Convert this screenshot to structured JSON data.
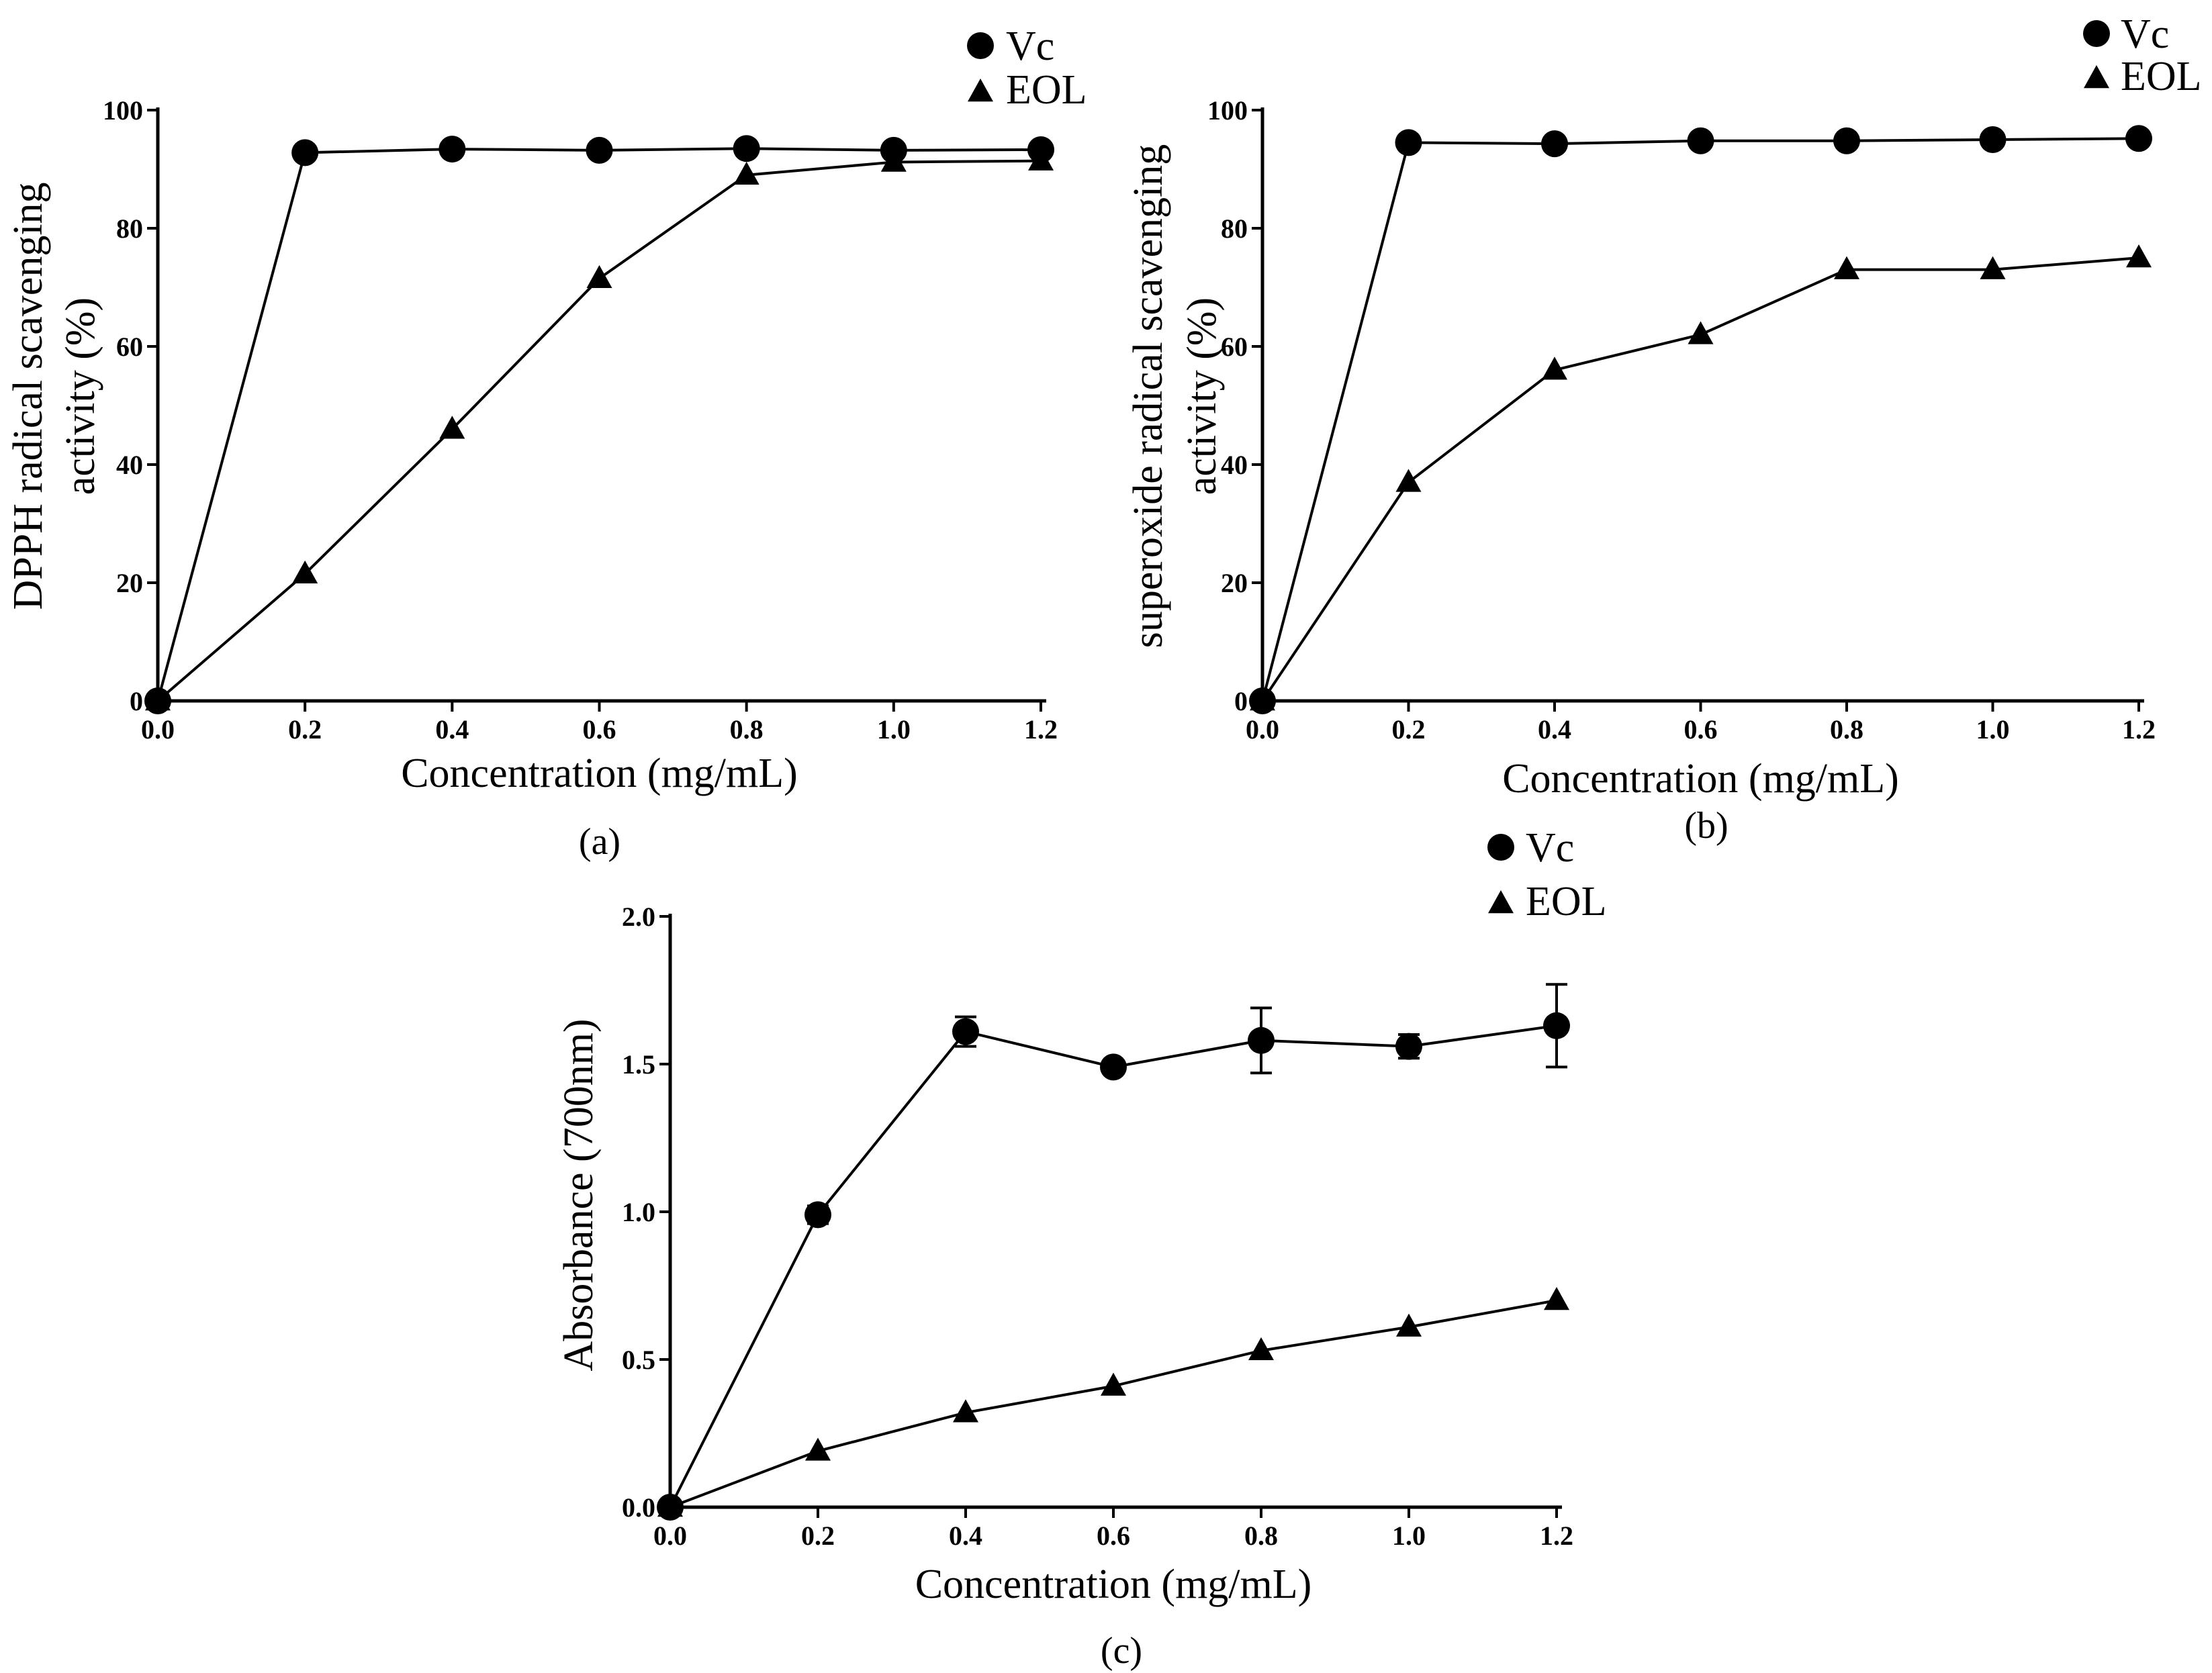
{
  "chart_data": [
    {
      "panel": "a",
      "type": "line",
      "panel_label": "(a)",
      "xlabel": "Concentration (mg/mL)",
      "ylabel_lines": [
        "DPPH radical scavenging",
        "activity (%)"
      ],
      "xlim": [
        0,
        1.2
      ],
      "ylim": [
        0,
        100
      ],
      "xticks": [
        "0.0",
        "0.2",
        "0.4",
        "0.6",
        "0.8",
        "1.0",
        "1.2"
      ],
      "yticks": [
        "0",
        "20",
        "40",
        "60",
        "80",
        "100"
      ],
      "grid": false,
      "legend_position": "top-right",
      "x": [
        0.0,
        0.2,
        0.4,
        0.6,
        0.8,
        1.0,
        1.2
      ],
      "series": [
        {
          "name": "Vc",
          "marker": "circle",
          "values": [
            0,
            92.8,
            93.4,
            93.2,
            93.5,
            93.2,
            93.3
          ]
        },
        {
          "name": "EOL",
          "marker": "triangle",
          "values": [
            0,
            21.5,
            46,
            71.5,
            89,
            91.2,
            91.4
          ]
        }
      ]
    },
    {
      "panel": "b",
      "type": "line",
      "panel_label": "(b)",
      "xlabel": "Concentration (mg/mL)",
      "ylabel_lines": [
        "superoxide radical scavenging",
        "activity (%)"
      ],
      "xlim": [
        0,
        1.2
      ],
      "ylim": [
        0,
        100
      ],
      "xticks": [
        "0.0",
        "0.2",
        "0.4",
        "0.6",
        "0.8",
        "1.0",
        "1.2"
      ],
      "yticks": [
        "0",
        "20",
        "40",
        "60",
        "80",
        "100"
      ],
      "grid": false,
      "legend_position": "top-right",
      "x": [
        0.0,
        0.2,
        0.4,
        0.6,
        0.8,
        1.0,
        1.2
      ],
      "series": [
        {
          "name": "Vc",
          "marker": "circle",
          "values": [
            0,
            94.5,
            94.3,
            94.8,
            94.8,
            95.0,
            95.2
          ]
        },
        {
          "name": "EOL",
          "marker": "triangle",
          "values": [
            0,
            37,
            56,
            62,
            73,
            73,
            75
          ]
        }
      ]
    },
    {
      "panel": "c",
      "type": "line",
      "panel_label": "(c)",
      "xlabel": "Concentration (mg/mL)",
      "ylabel_lines": [
        "Absorbance (700nm)"
      ],
      "xlim": [
        0,
        1.2
      ],
      "ylim": [
        0,
        2.0
      ],
      "xticks": [
        "0.0",
        "0.2",
        "0.4",
        "0.6",
        "0.8",
        "1.0",
        "1.2"
      ],
      "yticks": [
        "0.0",
        "0.5",
        "1.0",
        "1.5",
        "2.0"
      ],
      "grid": false,
      "legend_position": "top-right",
      "x": [
        0.0,
        0.2,
        0.4,
        0.6,
        0.8,
        1.0,
        1.2
      ],
      "series": [
        {
          "name": "Vc",
          "marker": "circle",
          "values": [
            0,
            0.99,
            1.61,
            1.49,
            1.58,
            1.56,
            1.63
          ],
          "errors": [
            0,
            0.03,
            0.05,
            0.02,
            0.11,
            0.04,
            0.14
          ]
        },
        {
          "name": "EOL",
          "marker": "triangle",
          "values": [
            0,
            0.19,
            0.32,
            0.41,
            0.53,
            0.61,
            0.7
          ]
        }
      ]
    }
  ]
}
